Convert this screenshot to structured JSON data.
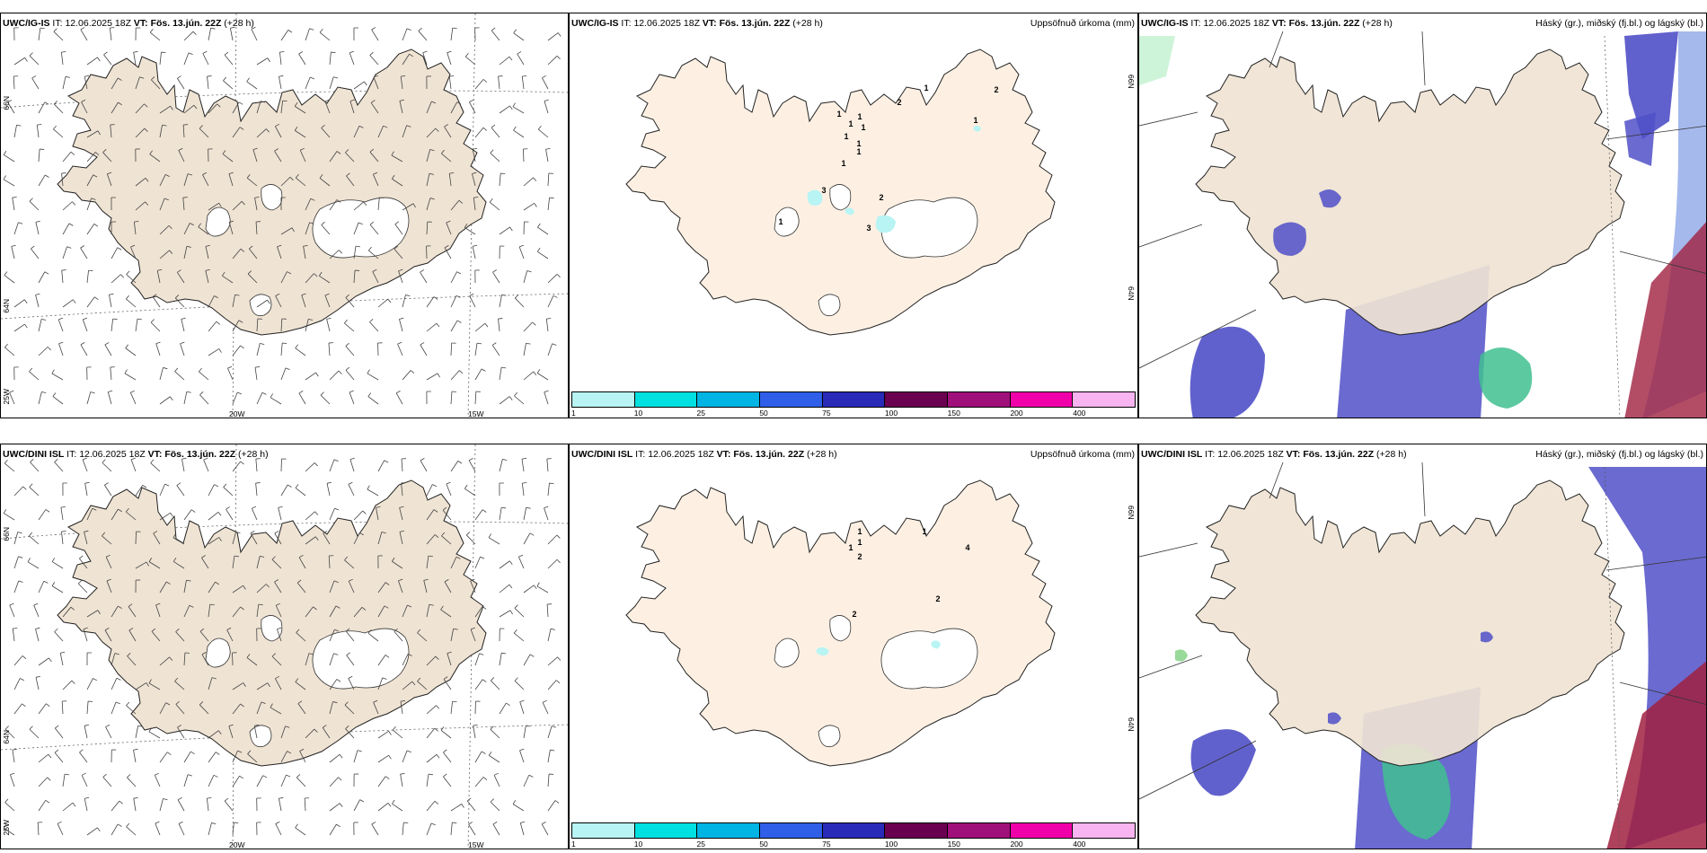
{
  "rows": [
    {
      "model": "UWC/IG-IS",
      "it_label": "IT:",
      "it_value": "12.06.2025 18Z",
      "vt_label": "VT:",
      "vt_value": "Fös. 13.jún. 22Z",
      "lead": "(+28 h)",
      "precip_points": [
        {
          "v": "1"
        },
        {
          "v": "1"
        },
        {
          "v": "1"
        },
        {
          "v": "1"
        },
        {
          "v": "1"
        },
        {
          "v": "1"
        },
        {
          "v": "1"
        },
        {
          "v": "1"
        },
        {
          "v": "2"
        },
        {
          "v": "1"
        },
        {
          "v": "1"
        },
        {
          "v": "2"
        },
        {
          "v": "3"
        },
        {
          "v": "2"
        },
        {
          "v": "3"
        },
        {
          "v": "1"
        }
      ]
    },
    {
      "model": "UWC/DINI ISL",
      "it_label": "IT:",
      "it_value": "12.06.2025 18Z",
      "vt_label": "VT:",
      "vt_value": "Fös. 13.jún. 22Z",
      "lead": "(+28 h)",
      "precip_points": [
        {
          "v": "1"
        },
        {
          "v": "1"
        },
        {
          "v": "1"
        },
        {
          "v": "2"
        },
        {
          "v": "1"
        },
        {
          "v": "4"
        },
        {
          "v": "2"
        },
        {
          "v": "2"
        }
      ]
    }
  ],
  "precip_title": "Uppsöfnuð úrkoma (mm)",
  "cloud_title": "Háský (gr.), miðský (fj.bl.) og lágský (bl.)",
  "axis_labels": {
    "lat66": "66N",
    "lat64": "64N",
    "lon20": "20W",
    "lon15": "15W",
    "lon25": "25W"
  },
  "colorbar": {
    "labels": [
      "1",
      "10",
      "25",
      "50",
      "75",
      "100",
      "150",
      "200",
      "400"
    ],
    "colors": [
      "#b8f4f4",
      "#00e0e0",
      "#00b4e4",
      "#2f5fe8",
      "#2a2ab8",
      "#6a0050",
      "#a0107a",
      "#f000a8",
      "#f8b4f0"
    ]
  },
  "colors": {
    "land": "#efe3d3",
    "land_precip": "#fdf0e3",
    "high_cloud": "#8fa8e8",
    "mid_cloud": "#5050c8",
    "low_cloud": "#a02040",
    "precip_light": "#b8f4f4"
  }
}
